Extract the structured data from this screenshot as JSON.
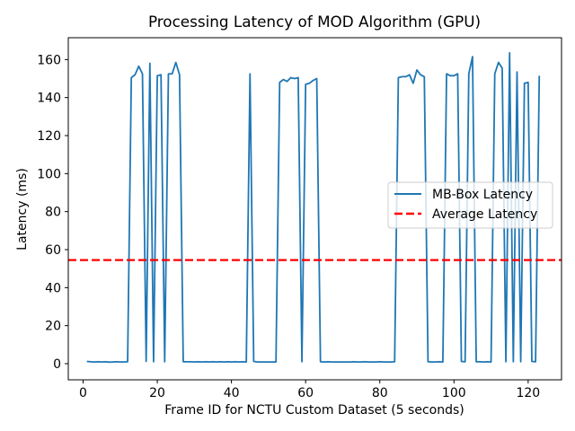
{
  "chart_data": {
    "type": "line",
    "title": "Processing Latency of MOD Algorithm (GPU)",
    "xlabel": "Frame ID for NCTU Custom Dataset (5 seconds)",
    "ylabel": "Latency (ms)",
    "xlim": [
      -4,
      129
    ],
    "ylim": [
      -8.5,
      171.5
    ],
    "xticks": [
      0,
      20,
      40,
      60,
      80,
      100,
      120
    ],
    "yticks": [
      0,
      20,
      40,
      60,
      80,
      100,
      120,
      140,
      160
    ],
    "grid": false,
    "legend_position": "center-right",
    "series": [
      {
        "name": "MB-Box Latency",
        "color": "#1f77b4",
        "style": "solid",
        "x": [
          1,
          2,
          3,
          4,
          5,
          6,
          7,
          8,
          9,
          10,
          11,
          12,
          13,
          14,
          15,
          16,
          17,
          18,
          19,
          20,
          21,
          22,
          23,
          24,
          25,
          26,
          27,
          28,
          29,
          30,
          31,
          32,
          33,
          34,
          35,
          36,
          37,
          38,
          39,
          40,
          41,
          42,
          43,
          44,
          45,
          46,
          47,
          48,
          49,
          50,
          51,
          52,
          53,
          54,
          55,
          56,
          57,
          58,
          59,
          60,
          61,
          62,
          63,
          64,
          65,
          66,
          67,
          68,
          69,
          70,
          71,
          72,
          73,
          74,
          75,
          76,
          77,
          78,
          79,
          80,
          81,
          82,
          83,
          84,
          85,
          86,
          87,
          88,
          89,
          90,
          91,
          92,
          93,
          94,
          95,
          96,
          97,
          98,
          99,
          100,
          101,
          102,
          103,
          104,
          105,
          106,
          107,
          108,
          109,
          110,
          111,
          112,
          113,
          114,
          115,
          116,
          117,
          118,
          119,
          120,
          121,
          122,
          123
        ],
        "y": [
          1.2,
          1.0,
          0.9,
          1.0,
          0.9,
          1.0,
          0.8,
          0.9,
          1.0,
          0.9,
          0.9,
          1.0,
          150.5,
          152.0,
          156.5,
          152.5,
          1.2,
          158.0,
          1.0,
          151.5,
          152.0,
          1.0,
          152.5,
          152.5,
          158.5,
          152.0,
          1.0,
          1.0,
          1.0,
          0.9,
          1.0,
          0.9,
          1.0,
          0.9,
          1.0,
          0.9,
          1.0,
          0.9,
          1.0,
          0.9,
          1.0,
          0.9,
          1.0,
          0.9,
          152.5,
          1.2,
          0.9,
          0.9,
          0.9,
          0.9,
          0.9,
          0.9,
          148.0,
          149.5,
          148.5,
          150.5,
          150.0,
          150.5,
          1.0,
          147.0,
          147.5,
          149.0,
          150.0,
          1.0,
          0.9,
          1.0,
          0.9,
          0.9,
          0.9,
          0.9,
          0.9,
          0.9,
          1.0,
          0.9,
          0.9,
          1.0,
          0.9,
          0.9,
          0.9,
          1.0,
          0.9,
          0.9,
          0.9,
          1.0,
          150.5,
          151.0,
          151.0,
          152.0,
          147.5,
          154.5,
          152.0,
          151.0,
          1.0,
          0.9,
          0.9,
          1.0,
          0.9,
          152.5,
          151.5,
          151.5,
          152.5,
          1.2,
          1.0,
          152.5,
          161.5,
          1.0,
          1.0,
          0.9,
          1.0,
          0.9,
          152.5,
          158.5,
          155.5,
          1.0,
          163.5,
          1.0,
          153.5,
          1.0,
          147.5,
          148.0,
          1.2,
          1.0,
          151.5
        ]
      },
      {
        "name": "Average Latency",
        "color": "#ff0000",
        "style": "dashed",
        "constant_y": 54.5
      }
    ]
  }
}
